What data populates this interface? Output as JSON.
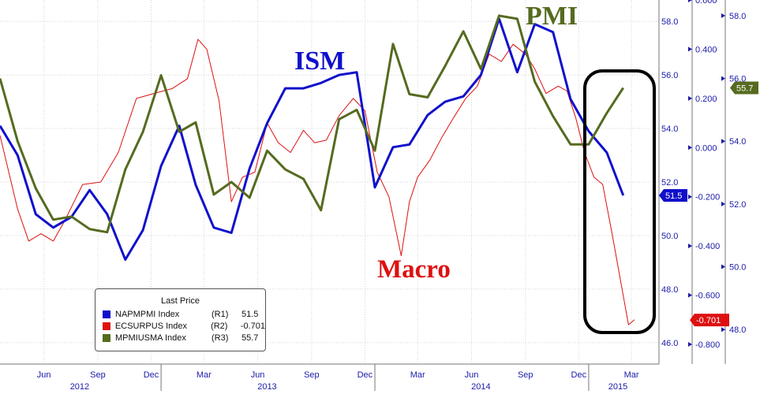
{
  "chart_data": {
    "type": "line",
    "annotations": [
      "ISM",
      "PMI",
      "Macro"
    ],
    "x_axis": {
      "month_ticks": [
        "Jun",
        "Sep",
        "Dec",
        "Mar",
        "Jun",
        "Sep",
        "Dec",
        "Mar",
        "Jun",
        "Sep",
        "Dec",
        "Mar"
      ],
      "year_ticks": [
        "2012",
        "2013",
        "2014",
        "2015"
      ]
    },
    "axes": {
      "R1": {
        "min": 45.2,
        "max": 58.8,
        "ticks": [
          "46.0",
          "48.0",
          "50.0",
          "52.0",
          "54.0",
          "56.0",
          "58.0"
        ]
      },
      "R2": {
        "min": -0.88,
        "max": 0.6,
        "ticks": [
          "-0.800",
          "-0.600",
          "-0.400",
          "-0.200",
          "0.000",
          "0.200",
          "0.400",
          "0.600"
        ]
      },
      "R3": {
        "min": 46.9,
        "max": 58.5,
        "ticks": [
          "48.0",
          "50.0",
          "52.0",
          "54.0",
          "56.0",
          "58.0"
        ]
      }
    },
    "grid": true,
    "legend_position": "bottom-left",
    "legend": {
      "title": "Last Price",
      "entries": [
        {
          "name": "NAPMPMI Index",
          "axis": "(R1)",
          "last": "51.5",
          "color": "#1010cc"
        },
        {
          "name": "ECSURPUS Index",
          "axis": "(R2)",
          "last": "-0.701",
          "color": "#dd1111"
        },
        {
          "name": "MPMIUSMA Index",
          "axis": "(R3)",
          "last": "55.7",
          "color": "#556b1f"
        }
      ]
    },
    "last_value_tags": {
      "ism": "51.5",
      "macro": "-0.701",
      "pmi": "55.7"
    },
    "series": [
      {
        "name": "NAPMPMI Index",
        "axis": "R1",
        "color": "#1010cc",
        "x": [
          "2012-04",
          "2012-05",
          "2012-06",
          "2012-07",
          "2012-08",
          "2012-09",
          "2012-10",
          "2012-11",
          "2012-12",
          "2013-01",
          "2013-02",
          "2013-03",
          "2013-04",
          "2013-05",
          "2013-06",
          "2013-07",
          "2013-08",
          "2013-09",
          "2013-10",
          "2013-11",
          "2013-12",
          "2014-01",
          "2014-02",
          "2014-03",
          "2014-04",
          "2014-05",
          "2014-06",
          "2014-07",
          "2014-08",
          "2014-09",
          "2014-10",
          "2014-11",
          "2014-12",
          "2015-01",
          "2015-02",
          "2015-03"
        ],
        "values": [
          54.1,
          53.0,
          50.8,
          50.3,
          50.7,
          51.7,
          50.8,
          49.1,
          50.2,
          52.6,
          54.1,
          51.9,
          50.3,
          50.1,
          52.5,
          54.2,
          55.5,
          55.5,
          55.7,
          56.0,
          56.1,
          51.8,
          53.3,
          53.4,
          54.5,
          55.0,
          55.2,
          56.0,
          58.1,
          56.1,
          57.9,
          57.6,
          55.1,
          53.9,
          53.1,
          51.5
        ]
      },
      {
        "name": "MPMIUSMA Index",
        "axis": "R3",
        "color": "#556b1f",
        "x": [
          "2012-04",
          "2012-05",
          "2012-06",
          "2012-07",
          "2012-08",
          "2012-09",
          "2012-10",
          "2012-11",
          "2012-12",
          "2013-01",
          "2013-02",
          "2013-03",
          "2013-04",
          "2013-05",
          "2013-06",
          "2013-07",
          "2013-08",
          "2013-09",
          "2013-10",
          "2013-11",
          "2013-12",
          "2014-01",
          "2014-02",
          "2014-03",
          "2014-04",
          "2014-05",
          "2014-06",
          "2014-07",
          "2014-08",
          "2014-09",
          "2014-10",
          "2014-11",
          "2014-12",
          "2015-01",
          "2015-02",
          "2015-03"
        ],
        "values": [
          56.0,
          54.0,
          52.5,
          51.5,
          51.6,
          51.2,
          51.1,
          53.1,
          54.3,
          56.1,
          54.3,
          54.6,
          52.3,
          52.7,
          52.2,
          53.7,
          53.1,
          52.8,
          51.8,
          54.7,
          55.0,
          53.7,
          57.1,
          55.5,
          55.4,
          56.4,
          57.5,
          56.3,
          58.0,
          57.9,
          55.9,
          54.8,
          53.9,
          53.9,
          54.9,
          55.7
        ]
      },
      {
        "name": "ECSURPUS Index",
        "axis": "R2",
        "color": "#dd1111",
        "x": [
          "2012-04-01",
          "2012-05-01",
          "2012-05-20",
          "2012-06-10",
          "2012-07-01",
          "2012-07-20",
          "2012-08-20",
          "2012-09-20",
          "2012-10-20",
          "2012-11-20",
          "2012-12-20",
          "2013-01-20",
          "2013-02-15",
          "2013-03-05",
          "2013-03-20",
          "2013-04-10",
          "2013-05-01",
          "2013-05-20",
          "2013-06-10",
          "2013-07-01",
          "2013-07-20",
          "2013-08-10",
          "2013-09-01",
          "2013-09-20",
          "2013-10-10",
          "2013-11-01",
          "2013-11-25",
          "2013-12-15",
          "2014-01-05",
          "2014-01-25",
          "2014-02-15",
          "2014-03-01",
          "2014-03-15",
          "2014-04-05",
          "2014-04-25",
          "2014-05-15",
          "2014-06-05",
          "2014-06-25",
          "2014-07-15",
          "2014-08-05",
          "2014-08-25",
          "2014-09-15",
          "2014-10-01",
          "2014-10-20",
          "2014-11-10",
          "2014-11-25",
          "2014-12-10",
          "2014-12-25",
          "2015-01-10",
          "2015-01-25",
          "2015-02-10",
          "2015-02-25",
          "2015-03-10",
          "2015-03-20"
        ],
        "values": [
          0.05,
          -0.25,
          -0.38,
          -0.35,
          -0.38,
          -0.3,
          -0.15,
          -0.14,
          -0.02,
          0.2,
          0.22,
          0.24,
          0.28,
          0.44,
          0.4,
          0.19,
          -0.22,
          -0.12,
          -0.1,
          0.1,
          0.02,
          -0.02,
          0.07,
          0.02,
          0.03,
          0.13,
          0.2,
          0.15,
          -0.1,
          -0.2,
          -0.44,
          -0.22,
          -0.12,
          -0.05,
          0.04,
          0.12,
          0.2,
          0.25,
          0.38,
          0.35,
          0.42,
          0.38,
          0.32,
          0.22,
          0.25,
          0.23,
          0.12,
          -0.02,
          -0.12,
          -0.15,
          -0.35,
          -0.55,
          -0.72,
          -0.7
        ]
      }
    ]
  }
}
